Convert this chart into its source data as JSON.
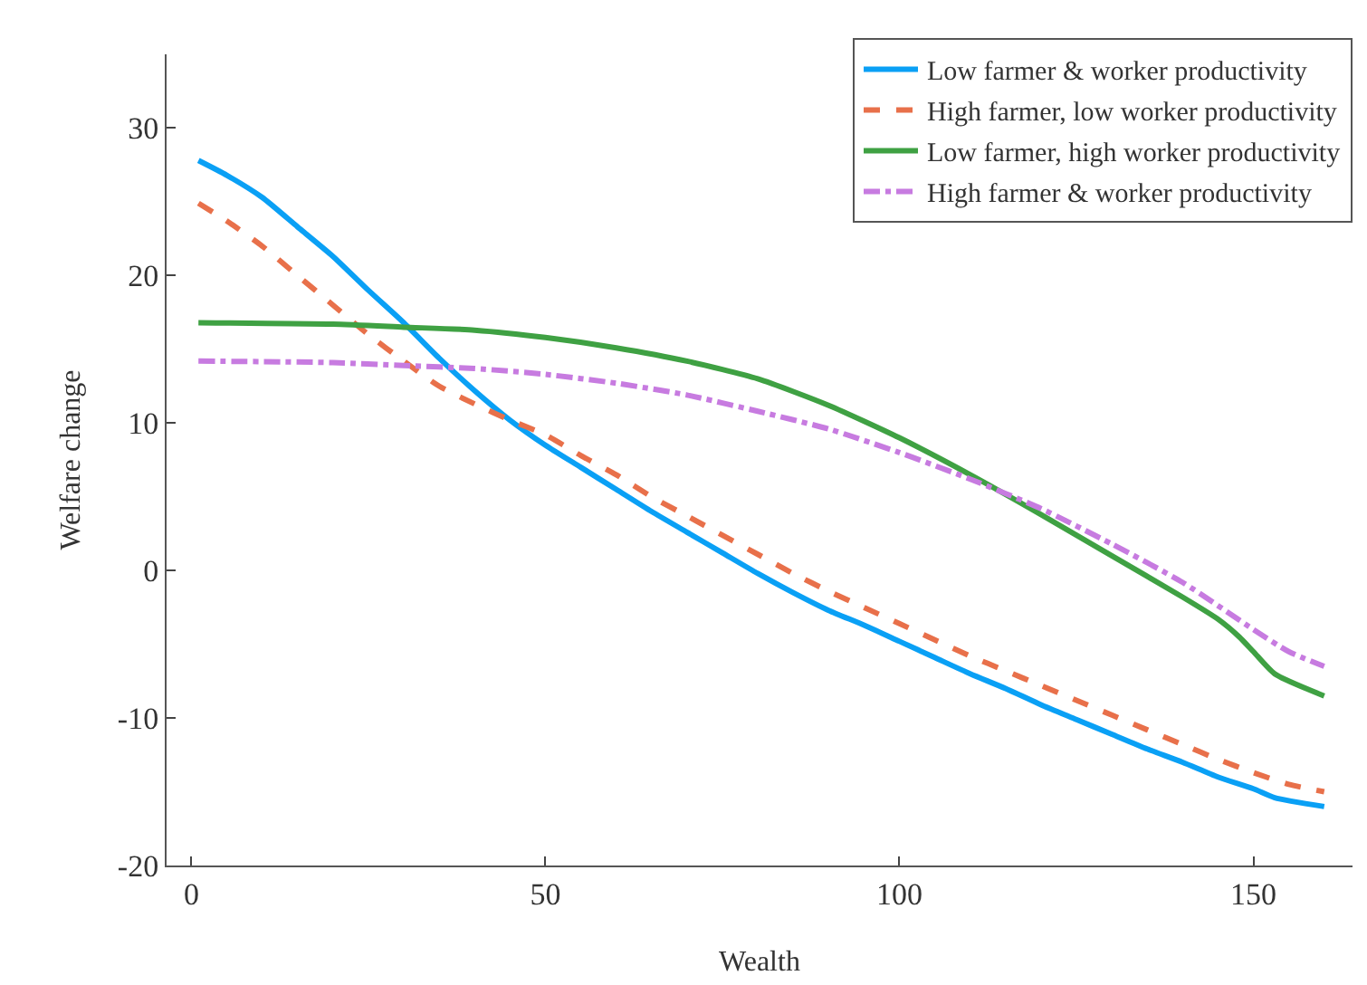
{
  "chart_data": {
    "type": "line",
    "xlabel": "Wealth",
    "ylabel": "Welfare change",
    "xlim": [
      -3.5,
      164
    ],
    "ylim": [
      -20,
      35
    ],
    "xticks": [
      0,
      50,
      100,
      150
    ],
    "yticks": [
      -20,
      -10,
      0,
      10,
      20,
      30
    ],
    "grid": false,
    "legend": "top right",
    "marker": "none",
    "series": [
      {
        "name": "Low farmer & worker productivity",
        "color": "#0aa0f5",
        "line_style": "solid",
        "x": [
          1,
          5,
          10,
          15,
          20,
          25,
          30,
          35,
          40,
          45,
          50,
          55,
          60,
          65,
          70,
          75,
          80,
          85,
          90,
          95,
          100,
          105,
          110,
          115,
          120,
          125,
          130,
          135,
          140,
          145,
          150,
          153,
          160
        ],
        "values": [
          27.8,
          26.8,
          25.3,
          23.3,
          21.3,
          19,
          16.8,
          14.4,
          12.2,
          10.2,
          8.5,
          7,
          5.5,
          4,
          2.6,
          1.2,
          -0.2,
          -1.5,
          -2.7,
          -3.7,
          -4.8,
          -5.9,
          -7,
          -8,
          -9.1,
          -10.1,
          -11.1,
          -12.1,
          -13,
          -14,
          -14.8,
          -15.4,
          -16
        ]
      },
      {
        "name": "High farmer, low worker productivity",
        "color": "#e8704a",
        "line_style": "dashed",
        "x": [
          1,
          5,
          10,
          15,
          20,
          25,
          30,
          35,
          40,
          45,
          50,
          55,
          60,
          65,
          70,
          75,
          80,
          85,
          90,
          95,
          100,
          105,
          110,
          115,
          120,
          125,
          130,
          135,
          140,
          145,
          150,
          155,
          160
        ],
        "values": [
          24.9,
          23.7,
          22,
          20,
          18,
          16,
          14.2,
          12.5,
          11.3,
          10.2,
          9.2,
          7.8,
          6.5,
          5,
          3.7,
          2.4,
          1.1,
          -0.2,
          -1.4,
          -2.5,
          -3.6,
          -4.7,
          -5.8,
          -6.8,
          -7.8,
          -8.8,
          -9.8,
          -10.8,
          -11.8,
          -12.8,
          -13.7,
          -14.5,
          -15
        ]
      },
      {
        "name": "Low farmer, high worker productivity",
        "color": "#3fa143",
        "line_style": "solid",
        "x": [
          1,
          20,
          30,
          40,
          50,
          60,
          70,
          80,
          90,
          100,
          110,
          120,
          130,
          140,
          145,
          148,
          150,
          153,
          160
        ],
        "values": [
          16.8,
          16.7,
          16.5,
          16.3,
          15.8,
          15.1,
          14.2,
          13,
          11.2,
          9,
          6.5,
          3.8,
          1,
          -1.8,
          -3.3,
          -4.5,
          -5.5,
          -7,
          -8.5
        ]
      },
      {
        "name": "High farmer & worker productivity",
        "color": "#c77be0",
        "line_style": "dashdot",
        "x": [
          1,
          20,
          30,
          40,
          50,
          60,
          70,
          80,
          90,
          100,
          110,
          120,
          130,
          140,
          150,
          155,
          160
        ],
        "values": [
          14.2,
          14.1,
          13.9,
          13.7,
          13.3,
          12.7,
          11.9,
          10.8,
          9.6,
          8,
          6.2,
          4.2,
          1.8,
          -0.8,
          -4,
          -5.5,
          -6.5
        ]
      }
    ]
  }
}
